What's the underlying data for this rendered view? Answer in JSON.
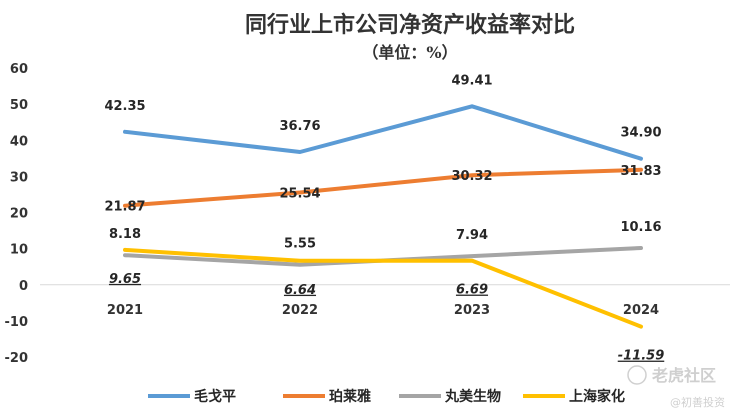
{
  "chart_data": {
    "type": "line",
    "title": "同行业上市公司净资产收益率对比",
    "subtitle": "（单位：%）",
    "categories": [
      "2021",
      "2022",
      "2023",
      "2024"
    ],
    "ylim": [
      -20,
      60
    ],
    "yticks": [
      "60",
      "50",
      "40",
      "30",
      "20",
      "10",
      "0",
      "-10",
      "-20"
    ],
    "grid": false,
    "legend_position": "bottom",
    "series": [
      {
        "name": "毛戈平",
        "color": "#5B9BD5",
        "values": [
          42.35,
          36.76,
          49.41,
          34.9
        ],
        "labels": [
          "42.35",
          "36.76",
          "49.41",
          "34.90"
        ]
      },
      {
        "name": "珀莱雅",
        "color": "#ED7D31",
        "values": [
          21.87,
          25.54,
          30.32,
          31.83
        ],
        "labels": [
          "21.87",
          "25.54",
          "30.32",
          "31.83"
        ]
      },
      {
        "name": "丸美生物",
        "color": "#A5A5A5",
        "values": [
          8.18,
          5.55,
          7.94,
          10.16
        ],
        "labels": [
          "8.18",
          "5.55",
          "7.94",
          "10.16"
        ]
      },
      {
        "name": "上海家化",
        "color": "#FFC000",
        "values": [
          9.65,
          6.64,
          6.69,
          -11.59
        ],
        "labels": [
          "9.65",
          "6.64",
          "6.69",
          "-11.59"
        ]
      }
    ]
  },
  "watermarks": {
    "brand": "老虎社区",
    "author": "@初善投资"
  }
}
